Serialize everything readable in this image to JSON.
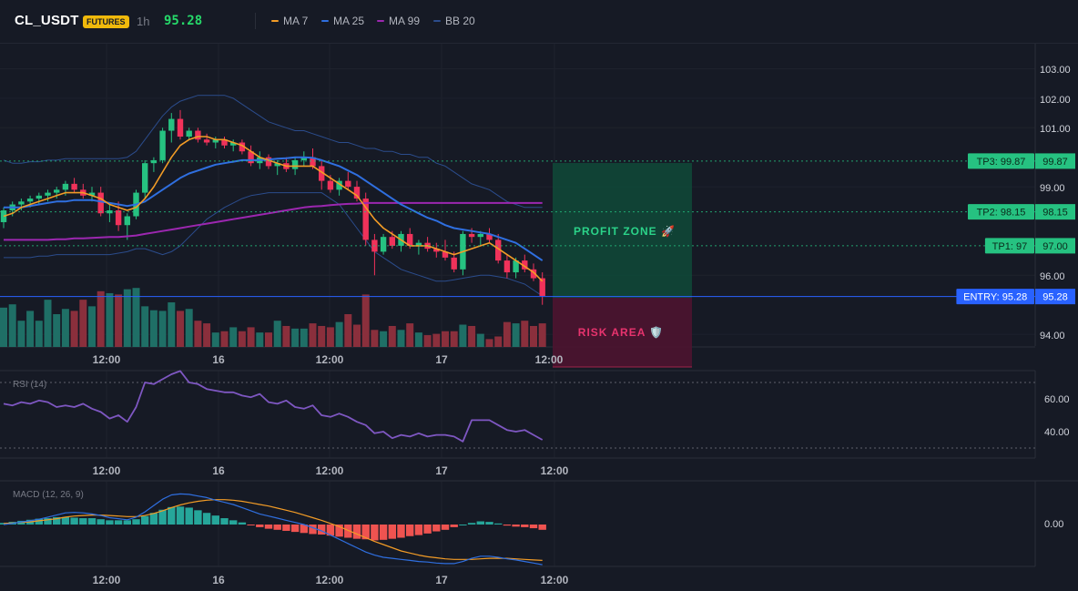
{
  "header": {
    "symbol": "CL_USDT",
    "badge": "FUTURES",
    "timeframe": "1h",
    "last_price": "95.28",
    "price_color": "#26d96a",
    "indicators": [
      {
        "label": "MA 7",
        "color": "#f39c26"
      },
      {
        "label": "MA 25",
        "color": "#2f6fe0"
      },
      {
        "label": "MA 99",
        "color": "#9c27b0"
      },
      {
        "label": "BB 20",
        "color": "#2b4c8c"
      }
    ]
  },
  "colors": {
    "up": "#26c281",
    "down": "#f0325a",
    "vol_up": "#1f6f66",
    "vol_down": "#8a2f3c"
  },
  "main_chart": {
    "price_axis_ticks": [
      "103.00",
      "102.00",
      "101.00",
      "99.00",
      "96.00",
      "94.00"
    ],
    "x_axis_labels": [
      "12:00",
      "16",
      "12:00",
      "17",
      "12:00"
    ],
    "levels": [
      {
        "name": "tp3",
        "tag": "TP3: 99.87",
        "axis_value": "99.87",
        "color": "#26c281"
      },
      {
        "name": "tp2",
        "tag": "TP2: 98.15",
        "axis_value": "98.15",
        "color": "#26c281"
      },
      {
        "name": "tp1",
        "tag": "TP1: 97",
        "axis_value": "97.00",
        "color": "#26c281"
      },
      {
        "name": "entry",
        "tag": "ENTRY: 95.28",
        "axis_value": "95.28",
        "color": "#2962ff"
      }
    ],
    "profit_zone_label": "PROFIT ZONE 🚀",
    "risk_area_label": "RISK AREA 🛡️"
  },
  "rsi": {
    "title": "RSI (14)",
    "ticks": [
      "60.00",
      "40.00"
    ],
    "x_axis_labels": [
      "12:00",
      "16",
      "12:00",
      "17",
      "12:00"
    ],
    "line_color": "#7e57c2"
  },
  "macd": {
    "title": "MACD (12, 26, 9)",
    "ticks": [
      "0.00"
    ],
    "x_axis_labels": [
      "12:00",
      "16",
      "12:00",
      "17",
      "12:00"
    ]
  },
  "chart_data": [
    {
      "type": "candlestick",
      "title": "CL_USDT 1h",
      "ylim": [
        93.6,
        103.5
      ],
      "candles": [
        [
          97.8,
          98.3,
          97.6,
          98.2
        ],
        [
          98.2,
          98.5,
          98.0,
          98.4
        ],
        [
          98.4,
          98.6,
          98.2,
          98.5
        ],
        [
          98.5,
          98.7,
          98.3,
          98.6
        ],
        [
          98.6,
          98.8,
          98.4,
          98.7
        ],
        [
          98.7,
          98.9,
          98.5,
          98.8
        ],
        [
          98.8,
          99.0,
          98.6,
          98.9
        ],
        [
          98.9,
          99.2,
          98.7,
          99.1
        ],
        [
          99.1,
          99.3,
          98.8,
          98.9
        ],
        [
          98.9,
          99.1,
          98.6,
          98.7
        ],
        [
          98.7,
          99.0,
          98.5,
          98.8
        ],
        [
          98.8,
          99.0,
          98.0,
          98.1
        ],
        [
          98.1,
          98.4,
          97.8,
          98.2
        ],
        [
          98.2,
          98.5,
          97.5,
          97.7
        ],
        [
          97.7,
          98.1,
          97.2,
          98.0
        ],
        [
          98.0,
          98.9,
          97.9,
          98.8
        ],
        [
          98.8,
          99.9,
          98.6,
          99.8
        ],
        [
          99.8,
          100.0,
          99.5,
          99.9
        ],
        [
          99.9,
          101.0,
          99.8,
          100.9
        ],
        [
          100.9,
          101.5,
          100.5,
          101.3
        ],
        [
          101.3,
          101.6,
          100.6,
          100.7
        ],
        [
          100.7,
          101.0,
          100.6,
          100.9
        ],
        [
          100.9,
          101.0,
          100.5,
          100.6
        ],
        [
          100.6,
          100.8,
          100.4,
          100.5
        ],
        [
          100.5,
          100.7,
          100.3,
          100.6
        ],
        [
          100.6,
          100.7,
          100.3,
          100.4
        ],
        [
          100.4,
          100.6,
          100.2,
          100.5
        ],
        [
          100.5,
          100.6,
          100.1,
          100.2
        ],
        [
          100.2,
          100.4,
          99.7,
          99.8
        ],
        [
          99.8,
          100.2,
          99.6,
          100.0
        ],
        [
          100.0,
          100.1,
          99.6,
          99.7
        ],
        [
          99.7,
          99.9,
          99.4,
          99.8
        ],
        [
          99.8,
          100.0,
          99.5,
          99.6
        ],
        [
          99.6,
          100.0,
          99.4,
          99.9
        ],
        [
          99.9,
          100.2,
          99.7,
          100.0
        ],
        [
          100.0,
          100.3,
          99.6,
          99.7
        ],
        [
          99.7,
          99.9,
          98.9,
          99.2
        ],
        [
          99.2,
          99.4,
          98.8,
          98.9
        ],
        [
          98.9,
          99.3,
          98.7,
          99.2
        ],
        [
          99.2,
          99.5,
          98.9,
          99.0
        ],
        [
          99.0,
          99.2,
          98.5,
          98.6
        ],
        [
          98.6,
          98.8,
          97.0,
          97.2
        ],
        [
          97.2,
          97.4,
          96.0,
          96.8
        ],
        [
          96.8,
          97.4,
          96.7,
          97.3
        ],
        [
          97.3,
          97.5,
          96.9,
          97.0
        ],
        [
          97.0,
          97.5,
          96.8,
          97.4
        ],
        [
          97.4,
          97.6,
          96.9,
          97.0
        ],
        [
          97.0,
          97.2,
          96.7,
          97.1
        ],
        [
          97.1,
          97.3,
          96.8,
          96.9
        ],
        [
          96.9,
          97.1,
          96.6,
          96.8
        ],
        [
          96.8,
          97.2,
          96.5,
          96.6
        ],
        [
          96.6,
          96.8,
          96.1,
          96.2
        ],
        [
          96.2,
          97.5,
          96.0,
          97.4
        ],
        [
          97.4,
          97.6,
          97.1,
          97.3
        ],
        [
          97.3,
          97.5,
          97.0,
          97.4
        ],
        [
          97.4,
          97.6,
          97.1,
          97.2
        ],
        [
          97.2,
          97.4,
          96.4,
          96.5
        ],
        [
          96.5,
          96.7,
          95.9,
          96.1
        ],
        [
          96.1,
          96.6,
          95.9,
          96.5
        ],
        [
          96.5,
          96.7,
          96.1,
          96.2
        ],
        [
          96.2,
          96.4,
          95.8,
          95.9
        ],
        [
          95.9,
          96.1,
          95.0,
          95.3
        ]
      ],
      "ma7": [
        98.0,
        98.1,
        98.3,
        98.4,
        98.5,
        98.6,
        98.7,
        98.8,
        98.8,
        98.8,
        98.7,
        98.6,
        98.4,
        98.3,
        98.2,
        98.3,
        98.6,
        99.0,
        99.5,
        100.0,
        100.4,
        100.6,
        100.7,
        100.7,
        100.6,
        100.6,
        100.5,
        100.4,
        100.2,
        100.0,
        99.9,
        99.8,
        99.7,
        99.7,
        99.7,
        99.7,
        99.5,
        99.3,
        99.1,
        98.9,
        98.7,
        98.3,
        97.9,
        97.6,
        97.4,
        97.2,
        97.0,
        97.0,
        97.0,
        96.9,
        96.8,
        96.7,
        96.8,
        96.9,
        97.0,
        97.1,
        96.9,
        96.7,
        96.5,
        96.3,
        96.1,
        95.8
      ],
      "ma25": [
        98.3,
        98.3,
        98.3,
        98.35,
        98.4,
        98.45,
        98.5,
        98.5,
        98.55,
        98.55,
        98.55,
        98.5,
        98.45,
        98.4,
        98.35,
        98.4,
        98.5,
        98.7,
        98.9,
        99.1,
        99.3,
        99.45,
        99.55,
        99.65,
        99.75,
        99.8,
        99.85,
        99.9,
        99.9,
        99.9,
        99.92,
        99.95,
        99.97,
        100.0,
        100.0,
        99.98,
        99.9,
        99.8,
        99.7,
        99.55,
        99.4,
        99.2,
        99.0,
        98.8,
        98.6,
        98.4,
        98.25,
        98.1,
        97.95,
        97.85,
        97.7,
        97.6,
        97.55,
        97.5,
        97.45,
        97.4,
        97.3,
        97.2,
        97.1,
        96.9,
        96.7,
        96.5
      ],
      "ma99": [
        97.2,
        97.2,
        97.2,
        97.2,
        97.2,
        97.2,
        97.22,
        97.22,
        97.25,
        97.25,
        97.27,
        97.28,
        97.3,
        97.3,
        97.32,
        97.35,
        97.4,
        97.45,
        97.5,
        97.55,
        97.6,
        97.65,
        97.7,
        97.75,
        97.8,
        97.85,
        97.9,
        97.95,
        98.0,
        98.05,
        98.1,
        98.15,
        98.2,
        98.25,
        98.3,
        98.33,
        98.35,
        98.38,
        98.4,
        98.42,
        98.43,
        98.45,
        98.45,
        98.45,
        98.45,
        98.45,
        98.45,
        98.45,
        98.45,
        98.45,
        98.45,
        98.45,
        98.45,
        98.45,
        98.45,
        98.45,
        98.45,
        98.45,
        98.45,
        98.45,
        98.45,
        98.45
      ],
      "bb_upper": [
        99.9,
        99.8,
        99.8,
        99.85,
        99.85,
        99.9,
        99.9,
        99.95,
        99.95,
        99.95,
        99.95,
        99.95,
        99.95,
        99.95,
        100.0,
        100.2,
        100.6,
        101.0,
        101.4,
        101.7,
        101.9,
        102.0,
        102.1,
        102.1,
        102.1,
        102.1,
        102.0,
        101.8,
        101.6,
        101.4,
        101.2,
        101.1,
        101.0,
        100.9,
        100.9,
        100.8,
        100.7,
        100.6,
        100.5,
        100.5,
        100.4,
        100.3,
        100.3,
        100.2,
        100.2,
        100.1,
        100.1,
        100.0,
        100.0,
        99.8,
        99.7,
        99.5,
        99.3,
        99.1,
        99.0,
        98.9,
        98.7,
        98.5,
        98.4,
        98.3,
        98.3,
        98.3
      ],
      "bb_lower": [
        96.6,
        96.6,
        96.6,
        96.6,
        96.65,
        96.65,
        96.7,
        96.7,
        96.7,
        96.7,
        96.7,
        96.7,
        96.7,
        96.75,
        96.8,
        96.9,
        96.9,
        96.8,
        96.7,
        96.8,
        97.0,
        97.3,
        97.6,
        97.9,
        98.1,
        98.3,
        98.45,
        98.6,
        98.7,
        98.75,
        98.8,
        98.8,
        98.8,
        98.8,
        98.8,
        98.8,
        98.8,
        98.6,
        98.4,
        98.0,
        97.6,
        97.2,
        96.8,
        96.6,
        96.4,
        96.2,
        96.1,
        96.0,
        95.9,
        95.8,
        95.8,
        95.85,
        95.9,
        95.95,
        96.0,
        96.0,
        95.95,
        95.9,
        95.8,
        95.7,
        95.5,
        95.3
      ],
      "volume": [
        60,
        65,
        40,
        55,
        40,
        72,
        50,
        58,
        55,
        72,
        62,
        85,
        82,
        80,
        88,
        90,
        62,
        56,
        55,
        68,
        55,
        58,
        40,
        36,
        22,
        24,
        30,
        24,
        30,
        22,
        22,
        40,
        32,
        28,
        28,
        36,
        32,
        30,
        38,
        50,
        34,
        80,
        26,
        24,
        32,
        26,
        36,
        22,
        18,
        20,
        24,
        24,
        34,
        32,
        20,
        12,
        16,
        38,
        36,
        40,
        32,
        36
      ]
    },
    {
      "type": "line",
      "title": "RSI (14)",
      "ylim": [
        25,
        80
      ],
      "values": [
        57,
        56,
        58,
        57,
        59,
        58,
        55,
        56,
        55,
        57,
        54,
        52,
        48,
        50,
        46,
        55,
        70,
        69,
        72,
        75,
        77,
        70,
        69,
        66,
        65,
        64,
        64,
        62,
        61,
        63,
        58,
        57,
        59,
        55,
        54,
        56,
        50,
        49,
        51,
        49,
        46,
        44,
        39,
        40,
        36,
        38,
        37,
        39,
        37,
        38,
        38,
        37,
        34,
        47,
        47,
        47,
        44,
        41,
        40,
        41,
        38,
        35
      ],
      "levels": [
        70,
        30
      ]
    },
    {
      "type": "bar+line",
      "title": "MACD (12, 26, 9)",
      "ylim": [
        -1.0,
        0.8
      ],
      "histogram": [
        0.03,
        0.05,
        0.07,
        0.09,
        0.11,
        0.12,
        0.14,
        0.14,
        0.13,
        0.12,
        0.12,
        0.1,
        0.08,
        0.08,
        0.08,
        0.1,
        0.16,
        0.22,
        0.28,
        0.33,
        0.34,
        0.32,
        0.27,
        0.22,
        0.17,
        0.12,
        0.08,
        0.04,
        -0.01,
        -0.05,
        -0.08,
        -0.1,
        -0.12,
        -0.14,
        -0.16,
        -0.18,
        -0.19,
        -0.21,
        -0.23,
        -0.25,
        -0.27,
        -0.28,
        -0.3,
        -0.29,
        -0.27,
        -0.25,
        -0.22,
        -0.2,
        -0.17,
        -0.13,
        -0.1,
        -0.05,
        0.0,
        0.03,
        0.06,
        0.05,
        0.02,
        -0.02,
        -0.04,
        -0.05,
        -0.07,
        -0.1
      ],
      "macd": [
        0.0,
        0.02,
        0.05,
        0.07,
        0.1,
        0.14,
        0.18,
        0.22,
        0.23,
        0.22,
        0.2,
        0.17,
        0.13,
        0.11,
        0.09,
        0.14,
        0.24,
        0.36,
        0.48,
        0.56,
        0.58,
        0.57,
        0.54,
        0.51,
        0.46,
        0.42,
        0.38,
        0.32,
        0.26,
        0.2,
        0.16,
        0.12,
        0.08,
        0.04,
        0.0,
        -0.06,
        -0.12,
        -0.2,
        -0.28,
        -0.36,
        -0.44,
        -0.52,
        -0.58,
        -0.62,
        -0.64,
        -0.66,
        -0.68,
        -0.7,
        -0.71,
        -0.73,
        -0.74,
        -0.74,
        -0.7,
        -0.64,
        -0.6,
        -0.6,
        -0.62,
        -0.65,
        -0.67,
        -0.7,
        -0.73,
        -0.76
      ],
      "signal": [
        0.02,
        0.03,
        0.04,
        0.05,
        0.07,
        0.09,
        0.11,
        0.14,
        0.16,
        0.17,
        0.18,
        0.18,
        0.17,
        0.16,
        0.15,
        0.15,
        0.17,
        0.21,
        0.26,
        0.32,
        0.37,
        0.41,
        0.44,
        0.46,
        0.47,
        0.47,
        0.46,
        0.44,
        0.41,
        0.38,
        0.35,
        0.31,
        0.27,
        0.23,
        0.18,
        0.13,
        0.08,
        0.02,
        -0.04,
        -0.11,
        -0.18,
        -0.25,
        -0.32,
        -0.38,
        -0.44,
        -0.5,
        -0.54,
        -0.58,
        -0.61,
        -0.63,
        -0.65,
        -0.66,
        -0.66,
        -0.66,
        -0.65,
        -0.64,
        -0.64,
        -0.64,
        -0.65,
        -0.66,
        -0.67,
        -0.68
      ]
    }
  ]
}
